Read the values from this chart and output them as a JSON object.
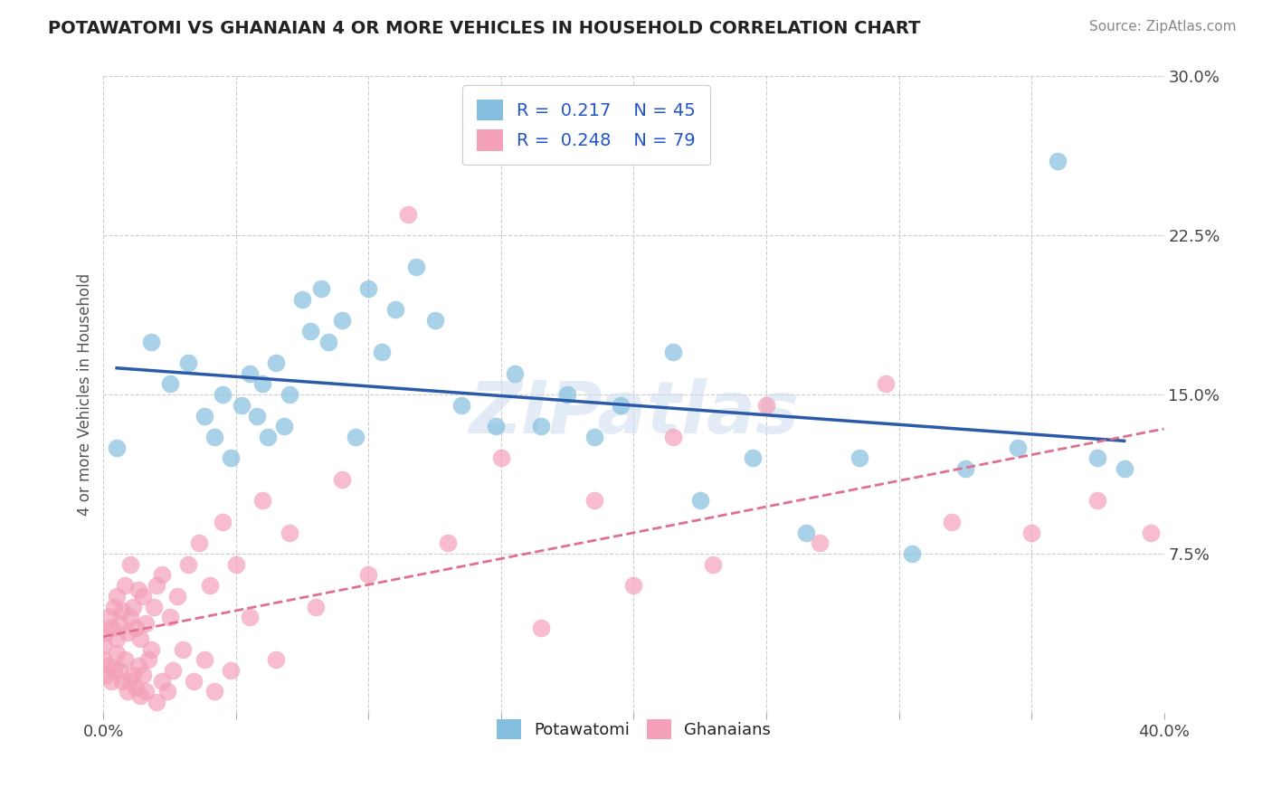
{
  "title": "POTAWATOMI VS GHANAIAN 4 OR MORE VEHICLES IN HOUSEHOLD CORRELATION CHART",
  "source": "Source: ZipAtlas.com",
  "ylabel": "4 or more Vehicles in Household",
  "xlim": [
    0.0,
    0.4
  ],
  "ylim": [
    0.0,
    0.3
  ],
  "xticks": [
    0.0,
    0.05,
    0.1,
    0.15,
    0.2,
    0.25,
    0.3,
    0.35,
    0.4
  ],
  "xticklabels": [
    "0.0%",
    "",
    "",
    "",
    "",
    "",
    "",
    "",
    "40.0%"
  ],
  "yticks": [
    0.0,
    0.075,
    0.15,
    0.225,
    0.3
  ],
  "yticklabels": [
    "",
    "7.5%",
    "15.0%",
    "22.5%",
    "30.0%"
  ],
  "potawatomi_R": 0.217,
  "potawatomi_N": 45,
  "ghanaian_R": 0.248,
  "ghanaian_N": 79,
  "potawatomi_color": "#85BFDF",
  "ghanaian_color": "#F4A0B8",
  "potawatomi_line_color": "#2B5BA8",
  "ghanaian_line_color": "#E07090",
  "watermark": "ZIPatlas",
  "background_color": "#ffffff",
  "grid_color": "#cccccc",
  "pota_x": [
    0.005,
    0.018,
    0.025,
    0.032,
    0.038,
    0.042,
    0.045,
    0.048,
    0.052,
    0.055,
    0.058,
    0.06,
    0.062,
    0.065,
    0.068,
    0.07,
    0.075,
    0.078,
    0.082,
    0.085,
    0.09,
    0.095,
    0.1,
    0.105,
    0.11,
    0.118,
    0.125,
    0.135,
    0.148,
    0.155,
    0.165,
    0.175,
    0.185,
    0.195,
    0.215,
    0.225,
    0.245,
    0.265,
    0.285,
    0.305,
    0.325,
    0.345,
    0.36,
    0.375,
    0.385
  ],
  "pota_y": [
    0.125,
    0.175,
    0.155,
    0.165,
    0.14,
    0.13,
    0.15,
    0.12,
    0.145,
    0.16,
    0.14,
    0.155,
    0.13,
    0.165,
    0.135,
    0.15,
    0.195,
    0.18,
    0.2,
    0.175,
    0.185,
    0.13,
    0.2,
    0.17,
    0.19,
    0.21,
    0.185,
    0.145,
    0.135,
    0.16,
    0.135,
    0.15,
    0.13,
    0.145,
    0.17,
    0.1,
    0.12,
    0.085,
    0.12,
    0.075,
    0.115,
    0.125,
    0.26,
    0.12,
    0.115
  ],
  "ghan_x": [
    0.0,
    0.0,
    0.001,
    0.001,
    0.002,
    0.002,
    0.003,
    0.003,
    0.004,
    0.004,
    0.005,
    0.005,
    0.005,
    0.006,
    0.006,
    0.007,
    0.007,
    0.008,
    0.008,
    0.009,
    0.009,
    0.01,
    0.01,
    0.01,
    0.011,
    0.011,
    0.012,
    0.012,
    0.013,
    0.013,
    0.014,
    0.014,
    0.015,
    0.015,
    0.016,
    0.016,
    0.017,
    0.018,
    0.019,
    0.02,
    0.02,
    0.022,
    0.022,
    0.024,
    0.025,
    0.026,
    0.028,
    0.03,
    0.032,
    0.034,
    0.036,
    0.038,
    0.04,
    0.042,
    0.045,
    0.048,
    0.05,
    0.055,
    0.06,
    0.065,
    0.07,
    0.08,
    0.09,
    0.1,
    0.115,
    0.13,
    0.15,
    0.165,
    0.185,
    0.2,
    0.215,
    0.23,
    0.25,
    0.27,
    0.295,
    0.32,
    0.35,
    0.375,
    0.395
  ],
  "ghan_y": [
    0.025,
    0.032,
    0.018,
    0.038,
    0.022,
    0.045,
    0.015,
    0.04,
    0.02,
    0.05,
    0.028,
    0.035,
    0.055,
    0.02,
    0.042,
    0.015,
    0.048,
    0.025,
    0.06,
    0.01,
    0.038,
    0.015,
    0.045,
    0.07,
    0.018,
    0.05,
    0.012,
    0.04,
    0.022,
    0.058,
    0.008,
    0.035,
    0.018,
    0.055,
    0.01,
    0.042,
    0.025,
    0.03,
    0.05,
    0.005,
    0.06,
    0.015,
    0.065,
    0.01,
    0.045,
    0.02,
    0.055,
    0.03,
    0.07,
    0.015,
    0.08,
    0.025,
    0.06,
    0.01,
    0.09,
    0.02,
    0.07,
    0.045,
    0.1,
    0.025,
    0.085,
    0.05,
    0.11,
    0.065,
    0.235,
    0.08,
    0.12,
    0.04,
    0.1,
    0.06,
    0.13,
    0.07,
    0.145,
    0.08,
    0.155,
    0.09,
    0.085,
    0.1,
    0.085
  ]
}
